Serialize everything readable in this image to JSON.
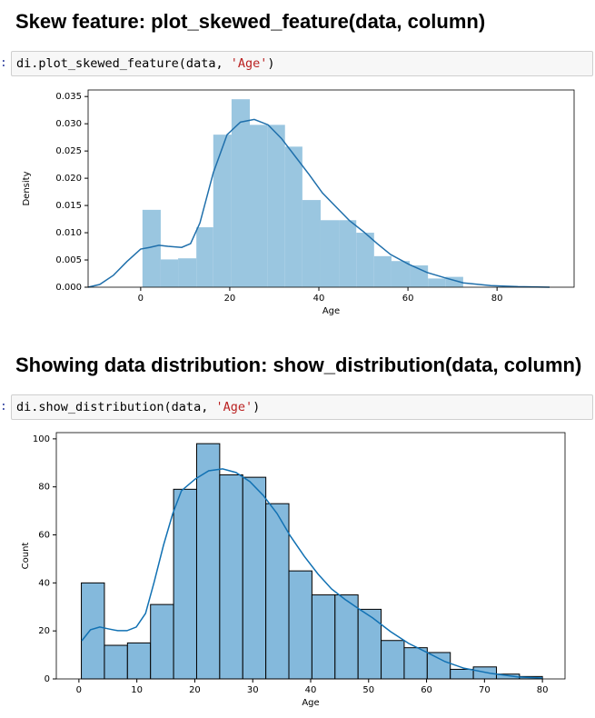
{
  "headings": [
    "Skew feature: plot_skewed_feature(data, column)",
    "Showing data distribution: show_distribution(data, column)"
  ],
  "cells": [
    {
      "prompt": ":",
      "code": [
        "di.plot_skewed_feature(data, ",
        "'Age'",
        ")"
      ]
    },
    {
      "prompt": ":",
      "code": [
        "di.show_distribution(data, ",
        "'Age'",
        ")"
      ]
    }
  ],
  "chart_data": [
    {
      "type": "histogram",
      "xlabel": "Age",
      "ylabel": "Density",
      "bins": [
        0.4,
        4.5,
        8.4,
        12.5,
        16.3,
        20.4,
        24.5,
        28.4,
        32.4,
        36.3,
        40.4,
        44.5,
        48.4,
        52.4,
        56.3,
        60.4,
        64.5,
        68.4,
        72.4
      ],
      "values": [
        0.0142,
        0.0051,
        0.0053,
        0.011,
        0.028,
        0.0345,
        0.0298,
        0.0298,
        0.0258,
        0.016,
        0.0123,
        0.0123,
        0.01,
        0.0057,
        0.0048,
        0.004,
        0.0016,
        0.0019
      ],
      "color": "#9ac6e0",
      "line": {
        "color": "#1f6fab",
        "x": [
          -11.8,
          -9.2,
          -6.1,
          -3.1,
          0,
          2.0,
          4.1,
          6.1,
          9.2,
          11.2,
          13.3,
          16.3,
          19.4,
          22.4,
          25.5,
          28.6,
          31.6,
          34.7,
          37.8,
          40.8,
          43.9,
          46.9,
          50.0,
          53.1,
          56.1,
          60.2,
          64.3,
          68.4,
          72.4,
          78.6,
          84.7,
          91.8
        ],
        "y": [
          0,
          0.0005,
          0.0022,
          0.0047,
          0.007,
          0.0073,
          0.0077,
          0.0075,
          0.0073,
          0.008,
          0.0118,
          0.021,
          0.028,
          0.0303,
          0.0308,
          0.0298,
          0.0273,
          0.024,
          0.0207,
          0.0173,
          0.0147,
          0.0122,
          0.0102,
          0.008,
          0.006,
          0.0042,
          0.0027,
          0.0017,
          0.0008,
          0.0003,
          0.0001,
          0
        ]
      },
      "xlim": [
        -11.8,
        97.3
      ],
      "ylim": [
        0,
        0.0362
      ],
      "xticks": [
        0,
        20,
        40,
        60,
        80
      ],
      "yticks": [
        {
          "value": 0,
          "label": "0.000"
        },
        0.005,
        {
          "value": 0.01,
          "label": "0.010"
        },
        0.015,
        {
          "value": 0.02,
          "label": "0.020"
        },
        0.025,
        {
          "value": 0.03,
          "label": "0.030"
        },
        0.035
      ]
    },
    {
      "type": "histogram",
      "xlabel": "Age",
      "ylabel": "Count",
      "bins": [
        0.42,
        4.4,
        8.38,
        12.36,
        16.34,
        20.32,
        24.3,
        28.28,
        32.26,
        36.24,
        40.22,
        44.2,
        48.18,
        52.16,
        56.14,
        60.12,
        64.1,
        68.08,
        72.06,
        76.04,
        80.0
      ],
      "values": [
        40,
        14,
        15,
        31,
        79,
        98,
        85,
        84,
        73,
        45,
        35,
        35,
        29,
        16,
        13,
        11,
        4,
        5,
        2,
        1
      ],
      "color": "#84b9dc",
      "edgecolor": "#000000",
      "line": {
        "color": "#1171b3",
        "x": [
          0.5,
          2.0,
          3.6,
          5.2,
          6.7,
          8.3,
          9.9,
          11.5,
          13.0,
          14.6,
          16.2,
          17.7,
          20.1,
          22.4,
          24.8,
          27.1,
          29.5,
          31.8,
          34.2,
          36.5,
          38.9,
          41.3,
          43.6,
          46.0,
          48.3,
          50.7,
          53.8,
          56.9,
          60.1,
          63.2,
          66.4,
          71.1,
          75.8,
          80.0
        ],
        "y": [
          15.9,
          20.5,
          21.6,
          20.8,
          20.1,
          20.1,
          21.6,
          27.3,
          40.5,
          55.7,
          68.9,
          78.4,
          83.3,
          86.7,
          87.5,
          86.0,
          82.2,
          76.5,
          68.9,
          59.5,
          51.1,
          43.6,
          37.5,
          33.0,
          29.2,
          25.4,
          19.7,
          14.8,
          11.0,
          7.2,
          4.5,
          2.3,
          0.8,
          0.4
        ]
      },
      "xlim": [
        -3.9,
        83.9
      ],
      "ylim": [
        0,
        102.6
      ],
      "xticks": [
        0,
        10,
        20,
        30,
        40,
        50,
        60,
        70,
        80
      ],
      "yticks": [
        0,
        20,
        40,
        60,
        80,
        100
      ]
    }
  ]
}
